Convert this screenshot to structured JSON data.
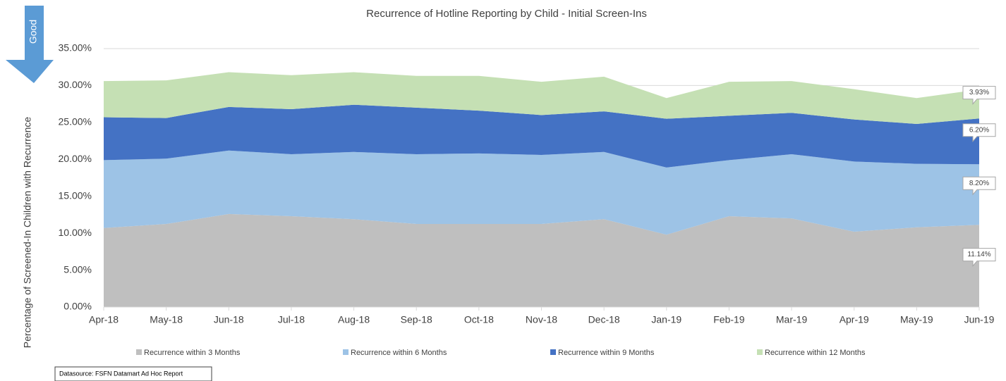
{
  "chart_data": {
    "type": "stacked_area",
    "title": "Recurrence of Hotline Reporting by Child - Initial Screen-Ins",
    "y_label": "Percentage of Screened-In Children with Recurrence",
    "annotation": "Good",
    "source": "Datasource: FSFN Datamart Ad Hoc Report",
    "categories": [
      "Apr-18",
      "May-18",
      "Jun-18",
      "Jul-18",
      "Aug-18",
      "Sep-18",
      "Oct-18",
      "Nov-18",
      "Dec-18",
      "Jan-19",
      "Feb-19",
      "Mar-19",
      "Apr-19",
      "May-19",
      "Jun-19"
    ],
    "series": [
      {
        "name": "Recurrence within 3 Months",
        "color": "#bfbfbf",
        "values": [
          10.7,
          11.25,
          12.6,
          12.3,
          11.9,
          11.25,
          11.25,
          11.25,
          11.9,
          9.8,
          12.3,
          12.0,
          10.2,
          10.8,
          11.14
        ],
        "value_labels": [
          null,
          null,
          null,
          null,
          null,
          null,
          null,
          null,
          null,
          null,
          null,
          null,
          null,
          null,
          "11.14%"
        ]
      },
      {
        "name": "Recurrence within 6 Months",
        "color": "#9dc3e6",
        "values": [
          9.2,
          8.85,
          8.6,
          8.4,
          9.1,
          9.45,
          9.55,
          9.35,
          9.1,
          9.1,
          7.6,
          8.7,
          9.5,
          8.6,
          8.2
        ],
        "value_labels": [
          null,
          null,
          null,
          null,
          null,
          null,
          null,
          null,
          null,
          null,
          null,
          null,
          null,
          null,
          "8.20%"
        ]
      },
      {
        "name": "Recurrence within 9 Months",
        "color": "#4472c4",
        "values": [
          5.8,
          5.5,
          5.9,
          6.1,
          6.4,
          6.3,
          5.8,
          5.4,
          5.5,
          6.6,
          6.0,
          5.6,
          5.7,
          5.4,
          6.2
        ],
        "value_labels": [
          null,
          null,
          null,
          null,
          null,
          null,
          null,
          null,
          null,
          null,
          null,
          null,
          null,
          null,
          "6.20%"
        ]
      },
      {
        "name": "Recurrence within 12 Months",
        "color": "#c5e0b4",
        "values": [
          4.9,
          5.1,
          4.7,
          4.6,
          4.4,
          4.3,
          4.7,
          4.5,
          4.7,
          2.8,
          4.6,
          4.3,
          4.1,
          3.5,
          3.93
        ],
        "value_labels": [
          null,
          null,
          null,
          null,
          null,
          null,
          null,
          null,
          null,
          null,
          null,
          null,
          null,
          null,
          "3.93%"
        ]
      }
    ],
    "ylim": [
      0,
      35
    ],
    "yticks": [
      {
        "value": 0,
        "label": "0.00%"
      },
      {
        "value": 5,
        "label": "5.00%"
      },
      {
        "value": 10,
        "label": "10.00%"
      },
      {
        "value": 15,
        "label": "15.00%"
      },
      {
        "value": 20,
        "label": "20.00%"
      },
      {
        "value": 25,
        "label": "25.00%"
      },
      {
        "value": 30,
        "label": "30.00%"
      },
      {
        "value": 35,
        "label": "35.00%"
      }
    ],
    "grid": true,
    "legend": "bottom"
  }
}
